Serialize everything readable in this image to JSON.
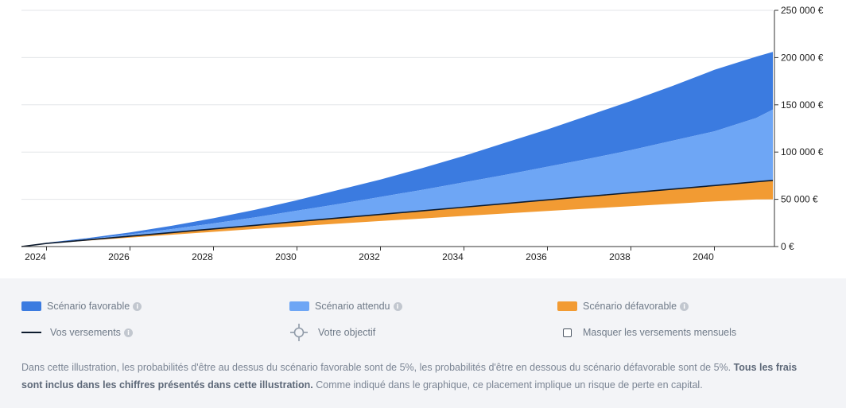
{
  "chart_data": {
    "type": "area",
    "x": [
      2023.4,
      2024,
      2025,
      2026,
      2027,
      2028,
      2029,
      2030,
      2031,
      2032,
      2033,
      2034,
      2035,
      2036,
      2037,
      2038,
      2039,
      2040,
      2041,
      2041.4
    ],
    "series": [
      {
        "name": "Scénario favorable",
        "color": "#3b7be0",
        "values": [
          0,
          4000,
          9000,
          15000,
          22000,
          30000,
          39000,
          49000,
          60000,
          71000,
          83000,
          96000,
          110000,
          124000,
          139000,
          154000,
          170000,
          187000,
          201000,
          206000
        ]
      },
      {
        "name": "Scénario attendu",
        "color": "#6ea6f5",
        "values": [
          0,
          3500,
          8000,
          13000,
          18500,
          24500,
          31000,
          38000,
          45000,
          52500,
          60000,
          68000,
          76000,
          84500,
          93000,
          102000,
          112000,
          122000,
          136000,
          145000
        ]
      },
      {
        "name": "Vos versements",
        "color": "#0d1b2e",
        "values": [
          0,
          3300,
          7100,
          11000,
          14800,
          18700,
          22500,
          26400,
          30200,
          34000,
          37800,
          41700,
          45500,
          49400,
          53200,
          57000,
          60800,
          64600,
          68500,
          70000
        ]
      },
      {
        "name": "Scénario défavorable",
        "color": "#f29b33",
        "values": [
          0,
          3000,
          6300,
          9500,
          12500,
          15600,
          18600,
          21500,
          24300,
          27000,
          29700,
          32400,
          35000,
          37600,
          40200,
          42800,
          45300,
          47800,
          49800,
          50000
        ]
      }
    ],
    "xticks": [
      "2024",
      "2026",
      "2028",
      "2030",
      "2032",
      "2034",
      "2036",
      "2038",
      "2040"
    ],
    "xtick_values": [
      2024,
      2026,
      2028,
      2030,
      2032,
      2034,
      2036,
      2038,
      2040
    ],
    "yticks": [
      "0 €",
      "50 000 €",
      "100 000 €",
      "150 000 €",
      "200 000 €",
      "250 000 €"
    ],
    "ytick_values": [
      0,
      50000,
      100000,
      150000,
      200000,
      250000
    ],
    "xlim": [
      2023.4,
      2041.4
    ],
    "ylim": [
      0,
      250000
    ],
    "grid": true,
    "legend_placement": "bottom"
  },
  "legend": {
    "favorable": "Scénario favorable",
    "attendu": "Scénario attendu",
    "defavorable": "Scénario défavorable",
    "versements": "Vos versements",
    "objectif": "Votre objectif",
    "masquer": "Masquer les versements mensuels",
    "info_glyph": "i"
  },
  "colors": {
    "favorable": "#3b7be0",
    "attendu": "#6ea6f5",
    "defavorable": "#f29b33",
    "versements": "#0d1b2e"
  },
  "disclaimer": {
    "part1": "Dans cette illustration, les probabilités d'être au dessus du scénario favorable sont de 5%, les probabilités d'être en dessous du scénario défavorable sont de 5%. ",
    "part2": "Tous les frais sont inclus dans les chiffres présentés dans cette illustration.",
    "part3": " Comme indiqué dans le graphique, ce placement implique un risque de perte en capital."
  }
}
